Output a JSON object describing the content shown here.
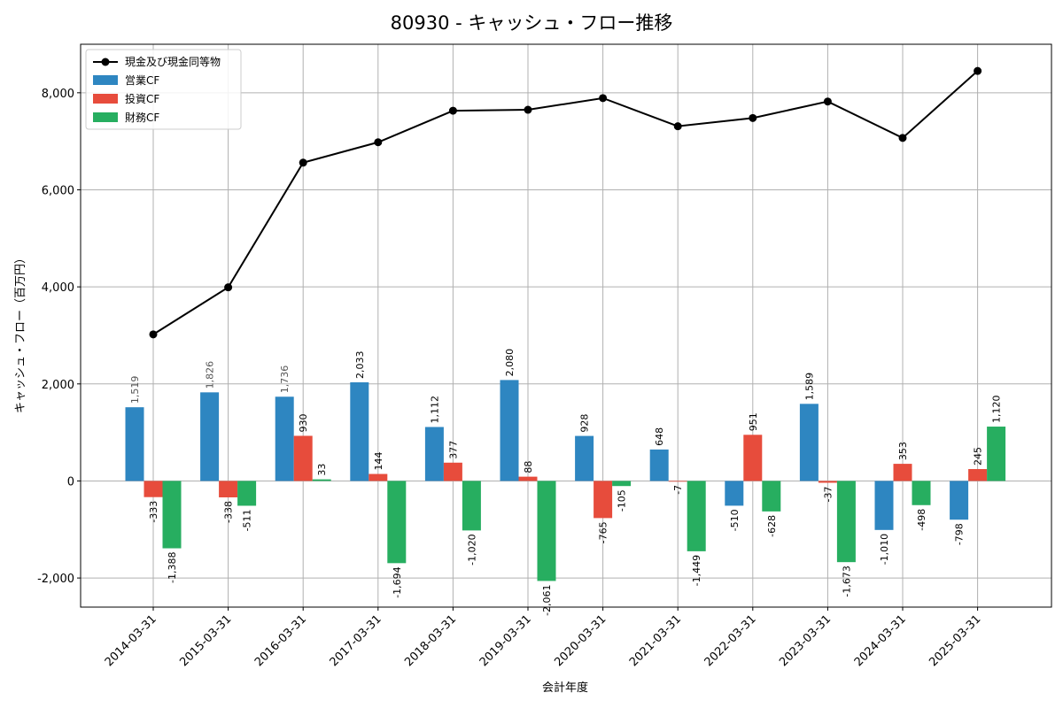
{
  "chart_data": {
    "type": "bar",
    "title": "80930 - キャッシュ・フロー推移",
    "xlabel": "会計年度",
    "ylabel": "キャッシュ・フロー（百万円）",
    "ylim": [
      -2600,
      9000
    ],
    "yticks": [
      -2000,
      0,
      2000,
      4000,
      6000,
      8000
    ],
    "ytick_labels": [
      "-2,000",
      "0",
      "2,000",
      "4,000",
      "6,000",
      "8,000"
    ],
    "grid": true,
    "legend_position": "top-left",
    "categories": [
      "2014-03-31",
      "2015-03-31",
      "2016-03-31",
      "2017-03-31",
      "2018-03-31",
      "2019-03-31",
      "2020-03-31",
      "2021-03-31",
      "2022-03-31",
      "2023-03-31",
      "2024-03-31",
      "2025-03-31"
    ],
    "line": {
      "name": "現金及び現金同等物",
      "color": "#000000",
      "values": [
        3020,
        3990,
        6560,
        6980,
        7630,
        7650,
        7890,
        7310,
        7480,
        7820,
        7070,
        8450
      ]
    },
    "series": [
      {
        "name": "営業CF",
        "color": "#2e86c1",
        "values": [
          1519,
          1826,
          1736,
          2033,
          1112,
          2080,
          928,
          648,
          -510,
          1589,
          -1010,
          -798
        ],
        "labels": [
          "1,519",
          "1,826",
          "1,736",
          "2,033",
          "1,112",
          "2,080",
          "928",
          "648",
          "-510",
          "1,589",
          "-1,010",
          "-798"
        ]
      },
      {
        "name": "投資CF",
        "color": "#e74c3c",
        "values": [
          -333,
          -338,
          930,
          144,
          377,
          88,
          -765,
          -7,
          951,
          -37,
          353,
          245
        ],
        "labels": [
          "-333",
          "-338",
          "930",
          "144",
          "377",
          "88",
          "-765",
          "-7",
          "951",
          "-37",
          "353",
          "245"
        ]
      },
      {
        "name": "財務CF",
        "color": "#27ae60",
        "values": [
          -1388,
          -511,
          33,
          -1694,
          -1020,
          -2061,
          -105,
          -1449,
          -628,
          -1673,
          -498,
          1120
        ],
        "labels": [
          "-1,388",
          "-511",
          "33",
          "-1,694",
          "-1,020",
          "-2,061",
          "-105",
          "-1,449",
          "-628",
          "-1,673",
          "-498",
          "1,120"
        ]
      }
    ]
  }
}
